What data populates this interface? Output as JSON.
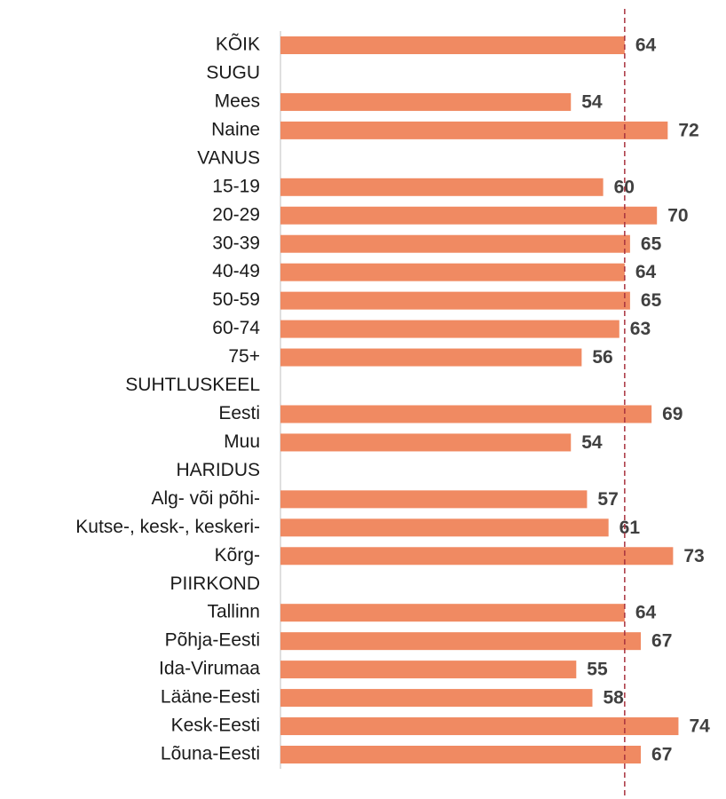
{
  "chart_data": {
    "type": "barh",
    "categories": [
      "KÕIK",
      "SUGU",
      "Mees",
      "Naine",
      "VANUS",
      "15-19",
      "20-29",
      "30-39",
      "40-49",
      "50-59",
      "60-74",
      "75+",
      "SUHTLUSKEEL",
      "Eesti",
      "Muu",
      "HARIDUS",
      "Alg- või põhi-",
      "Kutse-, kesk-, keskeri-",
      "Kõrg-",
      "PIIRKOND",
      "Tallinn",
      "Põhja-Eesti",
      "Ida-Virumaa",
      "Lääne-Eesti",
      "Kesk-Eesti",
      "Lõuna-Eesti"
    ],
    "values": [
      64,
      null,
      54,
      72,
      null,
      60,
      70,
      65,
      64,
      65,
      63,
      56,
      null,
      69,
      54,
      null,
      57,
      61,
      73,
      null,
      64,
      67,
      55,
      58,
      74,
      67
    ],
    "color": "#f08a62",
    "xlim": [
      0,
      80
    ],
    "reference_value": 64,
    "reference_color": "#a8323e"
  }
}
